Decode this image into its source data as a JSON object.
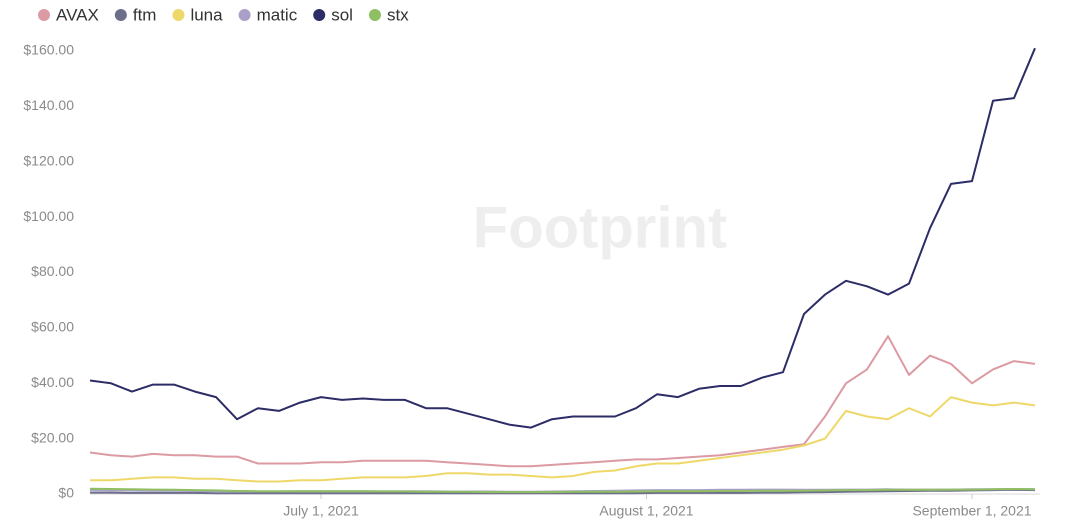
{
  "chart_data": {
    "type": "line",
    "watermark": "Footprint",
    "x": [
      "2021-06-09",
      "2021-06-11",
      "2021-06-13",
      "2021-06-15",
      "2021-06-17",
      "2021-06-19",
      "2021-06-21",
      "2021-06-23",
      "2021-06-25",
      "2021-06-27",
      "2021-06-29",
      "2021-07-01",
      "2021-07-03",
      "2021-07-05",
      "2021-07-07",
      "2021-07-09",
      "2021-07-11",
      "2021-07-13",
      "2021-07-15",
      "2021-07-17",
      "2021-07-19",
      "2021-07-21",
      "2021-07-23",
      "2021-07-25",
      "2021-07-27",
      "2021-07-29",
      "2021-07-31",
      "2021-08-02",
      "2021-08-04",
      "2021-08-06",
      "2021-08-08",
      "2021-08-10",
      "2021-08-12",
      "2021-08-14",
      "2021-08-16",
      "2021-08-18",
      "2021-08-20",
      "2021-08-22",
      "2021-08-24",
      "2021-08-26",
      "2021-08-28",
      "2021-08-30",
      "2021-09-01",
      "2021-09-03",
      "2021-09-05",
      "2021-09-07"
    ],
    "xlim": [
      "2021-06-09",
      "2021-09-07"
    ],
    "xticks": [
      {
        "value": "2021-07-01",
        "label": "July 1, 2021"
      },
      {
        "value": "2021-08-01",
        "label": "August 1, 2021"
      },
      {
        "value": "2021-09-01",
        "label": "September 1, 2021"
      }
    ],
    "ylim": [
      0,
      160
    ],
    "yticks": [
      {
        "value": 0,
        "label": "$0"
      },
      {
        "value": 20,
        "label": "$20.00"
      },
      {
        "value": 40,
        "label": "$40.00"
      },
      {
        "value": 60,
        "label": "$60.00"
      },
      {
        "value": 80,
        "label": "$80.00"
      },
      {
        "value": 100,
        "label": "$100.00"
      },
      {
        "value": 120,
        "label": "$120.00"
      },
      {
        "value": 140,
        "label": "$140.00"
      },
      {
        "value": 160,
        "label": "$160.00"
      }
    ],
    "grid": false,
    "legend": "top-left",
    "series": [
      {
        "name": "AVAX",
        "color": "#dc9aa3",
        "values": [
          15,
          14,
          13.5,
          14.5,
          14,
          14,
          13.5,
          13.5,
          11,
          11,
          11,
          11.5,
          11.5,
          12,
          12,
          12,
          12,
          11.5,
          11,
          10.5,
          10,
          10,
          10.5,
          11,
          11.5,
          12,
          12.5,
          12.5,
          13,
          13.5,
          14,
          15,
          16,
          17,
          18,
          28,
          40,
          45,
          57,
          43,
          50,
          47,
          40,
          45,
          48,
          47
        ]
      },
      {
        "name": "ftm",
        "color": "#6d6d8c",
        "values": [
          0.5,
          0.5,
          0.4,
          0.4,
          0.4,
          0.4,
          0.3,
          0.3,
          0.3,
          0.3,
          0.3,
          0.3,
          0.3,
          0.3,
          0.3,
          0.3,
          0.3,
          0.3,
          0.3,
          0.3,
          0.3,
          0.3,
          0.3,
          0.3,
          0.3,
          0.3,
          0.3,
          0.4,
          0.4,
          0.4,
          0.4,
          0.4,
          0.5,
          0.5,
          0.6,
          0.7,
          0.8,
          0.9,
          1,
          1.1,
          1.2,
          1.2,
          1.3,
          1.4,
          1.5,
          1.4
        ]
      },
      {
        "name": "luna",
        "color": "#efd86a",
        "values": [
          5,
          5,
          5.5,
          6,
          6,
          5.5,
          5.5,
          5,
          4.5,
          4.5,
          5,
          5,
          5.5,
          6,
          6,
          6,
          6.5,
          7.5,
          7.5,
          7,
          7,
          6.5,
          6,
          6.5,
          8,
          8.5,
          10,
          11,
          11,
          12,
          13,
          14,
          15,
          16,
          17.5,
          20,
          30,
          28,
          27,
          31,
          28,
          35,
          33,
          32,
          33,
          32
        ]
      },
      {
        "name": "matic",
        "color": "#a99fc9",
        "values": [
          1.4,
          1.3,
          1.3,
          1.2,
          1.2,
          1.1,
          1.1,
          1,
          0.9,
          0.9,
          1,
          1,
          1,
          1,
          1,
          1,
          1,
          0.9,
          0.9,
          0.9,
          0.8,
          0.8,
          0.9,
          1,
          1.1,
          1.2,
          1.3,
          1.4,
          1.4,
          1.4,
          1.5,
          1.5,
          1.6,
          1.6,
          1.5,
          1.5,
          1.6,
          1.6,
          1.7,
          1.6,
          1.6,
          1.6,
          1.7,
          1.7,
          1.8,
          1.7
        ]
      },
      {
        "name": "sol",
        "color": "#2c2c66",
        "values": [
          41,
          40,
          37,
          39.5,
          39.5,
          37,
          35,
          27,
          31,
          30,
          33,
          35,
          34,
          34.5,
          34,
          34,
          31,
          31,
          29,
          27,
          25,
          24,
          27,
          28,
          28,
          28,
          31,
          36,
          35,
          38,
          39,
          39,
          42,
          44,
          65,
          72,
          77,
          75,
          72,
          76,
          96,
          112,
          113,
          142,
          143,
          161
        ]
      },
      {
        "name": "stx",
        "color": "#8fbf62",
        "values": [
          1.9,
          1.8,
          1.7,
          1.6,
          1.5,
          1.4,
          1.3,
          1.1,
          1,
          1,
          1,
          1,
          1,
          1,
          0.9,
          0.9,
          0.8,
          0.8,
          0.8,
          0.7,
          0.7,
          0.7,
          0.7,
          0.8,
          0.8,
          0.8,
          0.9,
          1,
          1,
          1,
          1.1,
          1.1,
          1.2,
          1.2,
          1.2,
          1.3,
          1.4,
          1.4,
          1.5,
          1.5,
          1.5,
          1.6,
          1.6,
          1.7,
          1.8,
          1.7
        ]
      }
    ]
  }
}
